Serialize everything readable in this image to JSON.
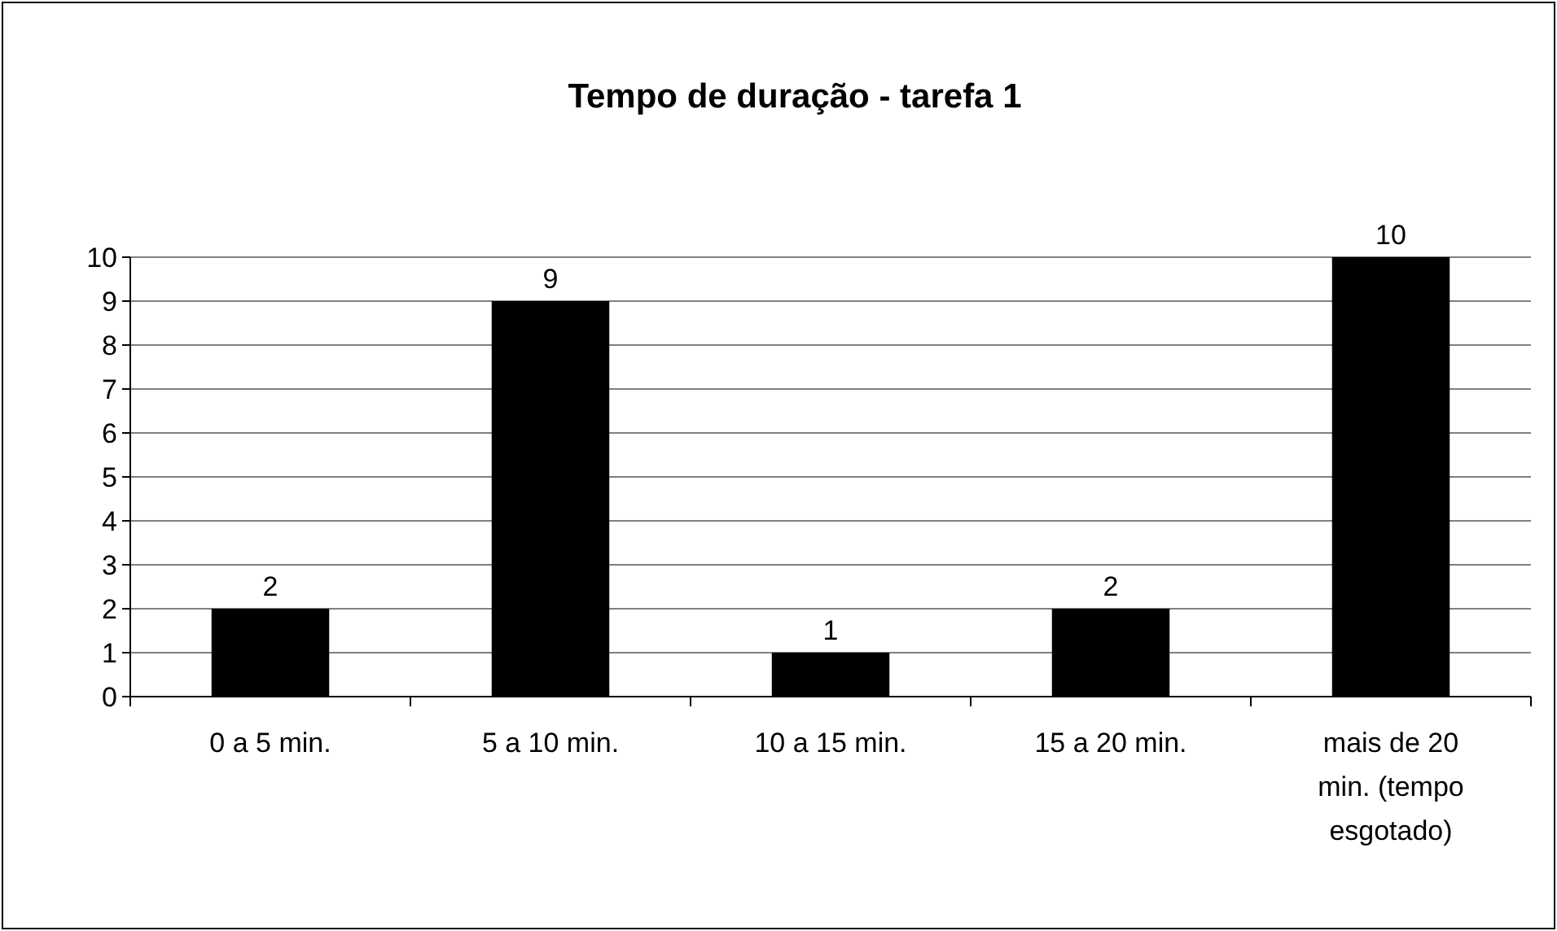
{
  "chart_data": {
    "type": "bar",
    "title": "Tempo de duração - tarefa 1",
    "categories": [
      "0 a 5 min.",
      "5 a 10 min.",
      "10 a 15 min.",
      "15 a 20 min.",
      "mais de 20 min. (tempo esgotado)"
    ],
    "values": [
      2,
      9,
      1,
      2,
      10
    ],
    "color": "#000000",
    "ylim": [
      0,
      10
    ],
    "yticks": [
      0,
      1,
      2,
      3,
      4,
      5,
      6,
      7,
      8,
      9,
      10
    ],
    "grid": "y",
    "data_labels": true
  }
}
